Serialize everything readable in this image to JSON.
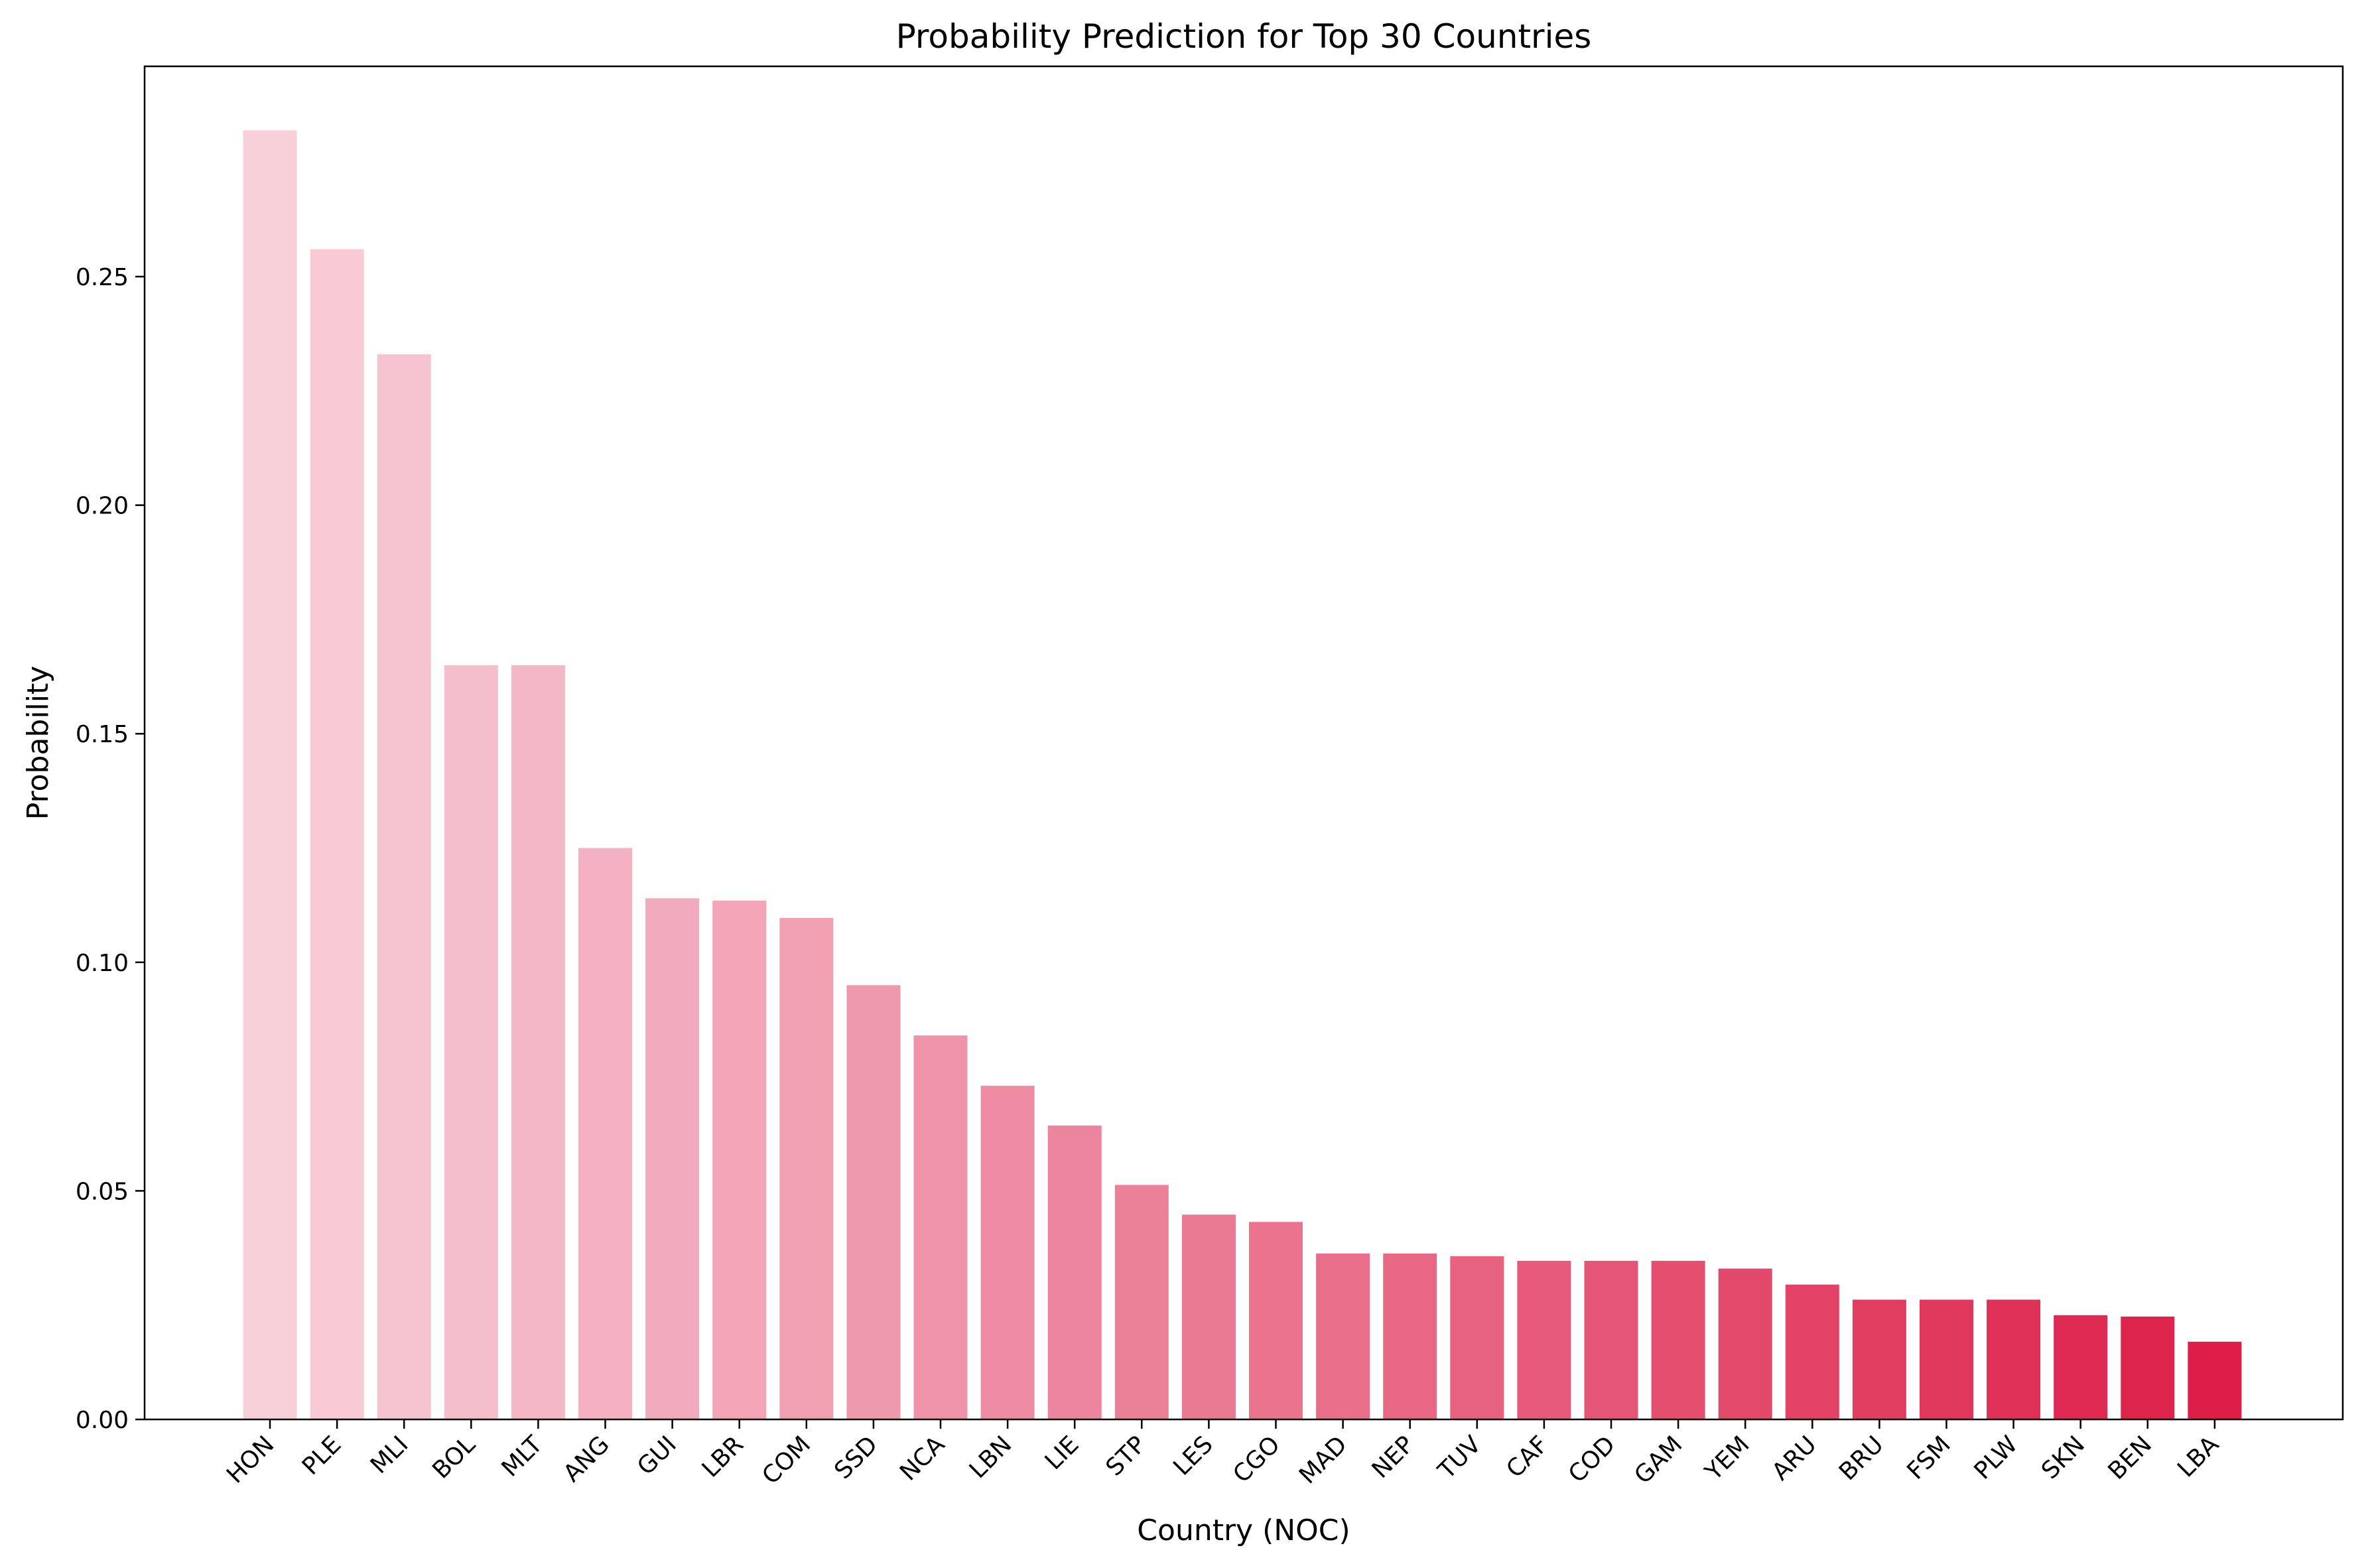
{
  "chart_data": {
    "type": "bar",
    "title": "Probability Prediction for Top 30 Countries",
    "xlabel": "Country (NOC)",
    "ylabel": "Probability",
    "ylim": [
      0,
      0.296
    ],
    "yticks": [
      "0.00",
      "0.05",
      "0.10",
      "0.15",
      "0.20",
      "0.25"
    ],
    "grid": false,
    "categories": [
      "HON",
      "PLE",
      "MLI",
      "BOL",
      "MLT",
      "ANG",
      "GUI",
      "LBR",
      "COM",
      "SSD",
      "NCA",
      "LBN",
      "LIE",
      "STP",
      "LES",
      "CGO",
      "MAD",
      "NEP",
      "TUV",
      "CAF",
      "COD",
      "GAM",
      "YEM",
      "ARU",
      "BRU",
      "FSM",
      "PLW",
      "SKN",
      "BEN",
      "LBA"
    ],
    "values": [
      0.282,
      0.256,
      0.233,
      0.165,
      0.165,
      0.125,
      0.114,
      0.1135,
      0.1097,
      0.095,
      0.084,
      0.073,
      0.0643,
      0.0513,
      0.0448,
      0.0432,
      0.0363,
      0.0363,
      0.0357,
      0.0347,
      0.0347,
      0.0347,
      0.033,
      0.0295,
      0.0262,
      0.0262,
      0.0262,
      0.0228,
      0.0225,
      0.017
    ],
    "colors": {
      "start": "#f8d0da",
      "end": "#dc1e48"
    }
  }
}
